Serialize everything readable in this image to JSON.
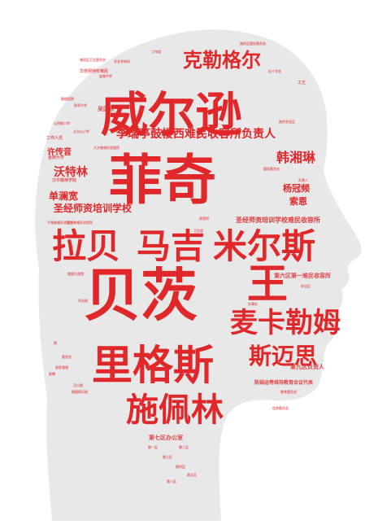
{
  "colors": {
    "background": "#ffffff",
    "silhouette": "#e8e8e8",
    "primary_red": "#e0282b",
    "light_red": "#ee7b7b"
  },
  "words": [
    {
      "text": "威尔逊",
      "color": "#e0282b"
    },
    {
      "text": "菲奇",
      "color": "#e0282b"
    },
    {
      "text": "贝茨",
      "color": "#e0282b"
    },
    {
      "text": "里格斯",
      "color": "#e0282b"
    },
    {
      "text": "拉贝",
      "color": "#e0282b"
    },
    {
      "text": "马吉",
      "color": "#e0282b"
    },
    {
      "text": "米尔斯",
      "color": "#e0282b"
    },
    {
      "text": "王",
      "color": "#e0282b"
    },
    {
      "text": "麦卡勒姆",
      "color": "#e0282b"
    },
    {
      "text": "施佩林",
      "color": "#e0282b"
    },
    {
      "text": "克勒格尔",
      "color": "#e0282b"
    },
    {
      "text": "斯迈思",
      "color": "#e0282b"
    },
    {
      "text": "李瑞亭鼓楼西难民收容所负责人",
      "color": "#e0282b"
    },
    {
      "text": "韩湘琳",
      "color": "#e0282b"
    },
    {
      "text": "沃特林",
      "color": "#e0282b"
    },
    {
      "text": "单澜宽",
      "color": "#e0282b"
    },
    {
      "text": "圣经师资培训学校",
      "color": "#e0282b"
    },
    {
      "text": "杨冠频",
      "color": "#e0282b"
    },
    {
      "text": "索恩",
      "color": "#e0282b"
    },
    {
      "text": "许传音",
      "color": "#e0282b"
    },
    {
      "text": "吴国京",
      "color": "#e0282b"
    },
    {
      "text": "圣经师资培训学校难民收容所",
      "color": "#e0282b"
    },
    {
      "text": "第六区第一难民收容所",
      "color": "#e0282b"
    },
    {
      "text": "第九区负责人",
      "color": "#e0282b"
    },
    {
      "text": "陈娟运等维持教育会议代表",
      "color": "#e0282b"
    },
    {
      "text": "第七区办公室",
      "color": "#e0282b"
    },
    {
      "text": "华侨招待所难民",
      "color": "#e0282b"
    },
    {
      "text": "工作人员",
      "color": "#e0282b"
    },
    {
      "text": "金陵大学",
      "color": "#e0282b"
    },
    {
      "text": "汉中路神学院",
      "color": "#e0282b"
    },
    {
      "text": "大方巷难民收容所",
      "color": "#e0282b"
    },
    {
      "text": "鼓楼医院",
      "color": "#e0282b"
    },
    {
      "text": "陆军大学",
      "color": "#e0282b"
    },
    {
      "text": "难民区卫生委员会",
      "color": "#e0282b"
    },
    {
      "text": "金陵中学",
      "color": "#e0282b"
    },
    {
      "text": "农业专修科",
      "color": "#e0282b"
    },
    {
      "text": "工作组",
      "color": "#e0282b"
    },
    {
      "text": "山西路小学",
      "color": "#e0282b"
    },
    {
      "text": "五台山小学",
      "color": "#e0282b"
    },
    {
      "text": "宁海路难民收容所",
      "color": "#e0282b"
    },
    {
      "text": "双龙巷难民收容所",
      "color": "#e0282b"
    },
    {
      "text": "高家酒馆",
      "color": "#e0282b"
    },
    {
      "text": "陈嵘",
      "color": "#e0282b"
    },
    {
      "text": "高",
      "color": "#e0282b"
    },
    {
      "text": "委员会",
      "color": "#e0282b"
    },
    {
      "text": "汉口路",
      "color": "#e0282b"
    },
    {
      "text": "德国俱乐部",
      "color": "#e0282b"
    },
    {
      "text": "美国大使馆",
      "color": "#e0282b"
    },
    {
      "text": "司法部",
      "color": "#e0282b"
    },
    {
      "text": "难民区国际委员会",
      "color": "#e0282b"
    },
    {
      "text": "红十字会",
      "color": "#e0282b"
    },
    {
      "text": "国际委员会",
      "color": "#e0282b"
    },
    {
      "text": "收容所",
      "color": "#e0282b"
    },
    {
      "text": "负责人",
      "color": "#e0282b"
    },
    {
      "text": "南京安全区",
      "color": "#e0282b"
    },
    {
      "text": "第一区",
      "color": "#e0282b"
    },
    {
      "text": "第二区",
      "color": "#e0282b"
    },
    {
      "text": "第三区",
      "color": "#e0282b"
    },
    {
      "text": "第四区",
      "color": "#e0282b"
    },
    {
      "text": "第五区",
      "color": "#e0282b"
    },
    {
      "text": "第八区",
      "color": "#e0282b"
    },
    {
      "text": "难民",
      "color": "#e0282b"
    },
    {
      "text": "安全区",
      "color": "#e0282b"
    },
    {
      "text": "办事处",
      "color": "#e0282b"
    },
    {
      "text": "粮食委员会",
      "color": "#e0282b"
    },
    {
      "text": "住房委员会",
      "color": "#e0282b"
    },
    {
      "text": "卫生组",
      "color": "#e0282b"
    },
    {
      "text": "工王",
      "color": "#e0282b"
    }
  ]
}
